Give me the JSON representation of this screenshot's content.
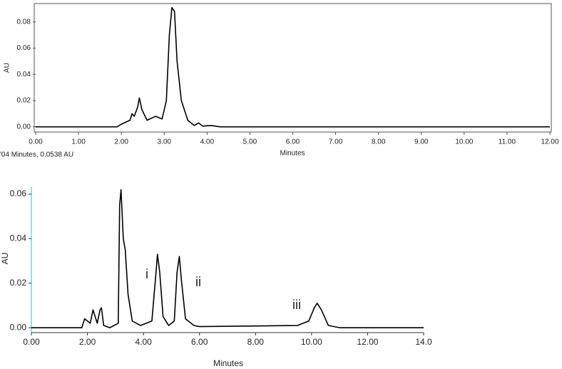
{
  "chart_data": [
    {
      "type": "line",
      "x_label": "Minutes",
      "y_label": "AU",
      "color": "#000000",
      "annotations": [
        "'04 Minutes, 0.0538 AU"
      ],
      "x": [
        0,
        1.9,
        2.0,
        2.2,
        2.25,
        2.3,
        2.38,
        2.42,
        2.48,
        2.6,
        2.8,
        2.95,
        3.05,
        3.12,
        3.18,
        3.24,
        3.3,
        3.4,
        3.55,
        3.7,
        3.8,
        3.9,
        4.1,
        4.3,
        12
      ],
      "values": [
        0,
        0,
        0.002,
        0.005,
        0.01,
        0.008,
        0.015,
        0.022,
        0.013,
        0.005,
        0.008,
        0.006,
        0.02,
        0.07,
        0.091,
        0.088,
        0.05,
        0.02,
        0.005,
        0.001,
        0.003,
        0.0005,
        0.001,
        0,
        0
      ],
      "xlim": [
        0,
        12
      ],
      "ylim": [
        -0.004,
        0.094
      ],
      "xticks": [
        {
          "value": 0,
          "label": "0.00"
        },
        {
          "value": 1,
          "label": "1.00"
        },
        {
          "value": 2,
          "label": "2.00"
        },
        {
          "value": 3,
          "label": "3.00"
        },
        {
          "value": 4,
          "label": "4.00"
        },
        {
          "value": 5,
          "label": "5.00"
        },
        {
          "value": 6,
          "label": "6.00"
        },
        {
          "value": 7,
          "label": "7.00"
        },
        {
          "value": 8,
          "label": "8.00"
        },
        {
          "value": 9,
          "label": "9.00"
        },
        {
          "value": 10,
          "label": "10.00"
        },
        {
          "value": 11,
          "label": "11.00"
        },
        {
          "value": 12,
          "label": "12.00"
        }
      ],
      "yticks": [
        {
          "value": 0,
          "label": "0.00"
        },
        {
          "value": 0.02,
          "label": "0.02"
        },
        {
          "value": 0.04,
          "label": "0.04"
        },
        {
          "value": 0.06,
          "label": "0.06"
        },
        {
          "value": 0.08,
          "label": "0.08"
        }
      ]
    },
    {
      "type": "line",
      "x_label": "Minutes",
      "y_label": "AU",
      "color": "#000000",
      "annotations": [
        "i",
        "ii",
        "iii"
      ],
      "x": [
        0,
        1.8,
        1.9,
        2.0,
        2.1,
        2.2,
        2.25,
        2.35,
        2.45,
        2.5,
        2.58,
        2.8,
        3.1,
        3.15,
        3.2,
        3.28,
        3.35,
        3.45,
        3.6,
        3.9,
        4.3,
        4.45,
        4.5,
        4.58,
        4.7,
        4.9,
        5.1,
        5.2,
        5.28,
        5.35,
        5.5,
        5.8,
        6,
        9.5,
        9.9,
        10.1,
        10.2,
        10.35,
        10.6,
        11,
        14
      ],
      "values": [
        0,
        0,
        0.004,
        0.003,
        0.002,
        0.008,
        0.006,
        0.002,
        0.008,
        0.009,
        0.001,
        0,
        0.002,
        0.055,
        0.062,
        0.04,
        0.035,
        0.015,
        0.003,
        0.001,
        0.003,
        0.025,
        0.033,
        0.025,
        0.005,
        0.001,
        0.003,
        0.025,
        0.032,
        0.022,
        0.004,
        0.001,
        0.0005,
        0.001,
        0.003,
        0.009,
        0.011,
        0.008,
        0.001,
        0,
        0
      ],
      "xlim": [
        0,
        14
      ],
      "ylim": [
        -0.0022,
        0.0632
      ],
      "xticks": [
        {
          "value": 0,
          "label": "0.00"
        },
        {
          "value": 2,
          "label": "2.00"
        },
        {
          "value": 4,
          "label": "4.00"
        },
        {
          "value": 6,
          "label": "6.00"
        },
        {
          "value": 8,
          "label": "8.00"
        },
        {
          "value": 10,
          "label": "10.00"
        },
        {
          "value": 12,
          "label": "12.00"
        },
        {
          "value": 14,
          "label": "14.0"
        }
      ],
      "yticks": [
        {
          "value": 0,
          "label": "0.00"
        },
        {
          "value": 0.02,
          "label": "0.02"
        },
        {
          "value": 0.04,
          "label": "0.04"
        },
        {
          "value": 0.06,
          "label": "0.06"
        }
      ]
    }
  ]
}
